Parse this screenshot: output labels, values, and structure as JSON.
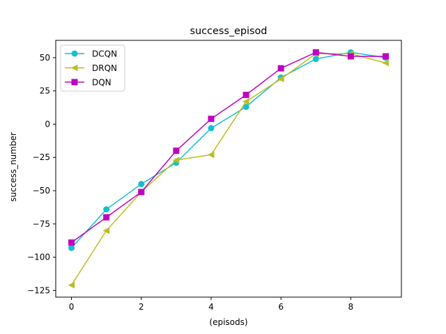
{
  "chart_data": {
    "type": "line",
    "title": "success_episod",
    "xlabel": "(episods)",
    "ylabel": "success_number",
    "x": [
      0,
      1,
      2,
      3,
      4,
      5,
      6,
      7,
      8,
      9
    ],
    "xlim": [
      -0.45,
      9.45
    ],
    "ylim": [
      -130,
      63
    ],
    "xticks": [
      0,
      2,
      4,
      6,
      8
    ],
    "yticks": [
      50,
      25,
      0,
      -25,
      -50,
      -75,
      -100,
      -125
    ],
    "ytick_labels": [
      "50",
      "25",
      "0",
      "−25",
      "−50",
      "−75",
      "−100",
      "−125"
    ],
    "grid": false,
    "legend_position": "upper-left",
    "series": [
      {
        "name": "DCQN",
        "color": "#17becf",
        "marker": "circle",
        "values": [
          -93,
          -64,
          -45,
          -29,
          -3,
          13,
          35,
          49,
          54,
          50
        ]
      },
      {
        "name": "DRQN",
        "color": "#bcbd22",
        "marker": "triangle-left",
        "values": [
          -121,
          -80,
          -51,
          -27,
          -23,
          17,
          34,
          53,
          53,
          46
        ]
      },
      {
        "name": "DQN",
        "color": "#c000c0",
        "marker": "square",
        "values": [
          -89,
          -70,
          -51,
          -20,
          4,
          22,
          42,
          54,
          51,
          51
        ]
      }
    ]
  }
}
